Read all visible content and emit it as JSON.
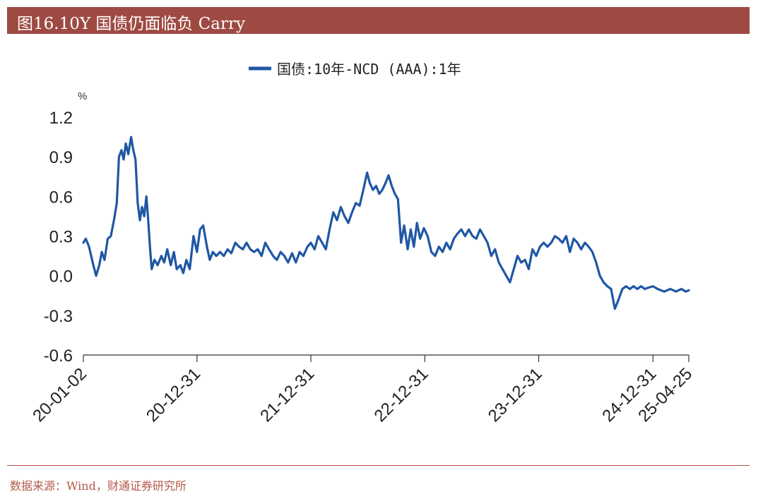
{
  "title": "图16.10Y 国债仍面临负 Carry",
  "source": "数据来源：Wind，财通证券研究所",
  "colors": {
    "title_bg": "#9e4a43",
    "series": "#1f57a4",
    "source_text": "#b35a4a",
    "axis": "#333333"
  },
  "chart_data": {
    "type": "line",
    "title": "",
    "xlabel": "",
    "ylabel": "%",
    "ylim": [
      -0.6,
      1.2
    ],
    "yticks": [
      "1.2",
      "0.9",
      "0.6",
      "0.3",
      "0.0",
      "-0.3",
      "-0.6"
    ],
    "ytick_values": [
      1.2,
      0.9,
      0.6,
      0.3,
      0.0,
      -0.3,
      -0.6
    ],
    "xticks": [
      "20-01-02",
      "20-12-31",
      "21-12-31",
      "22-12-31",
      "23-12-31",
      "24-12-31",
      "25-04-25"
    ],
    "xtick_dates": [
      "2020-01-02",
      "2020-12-31",
      "2021-12-31",
      "2022-12-31",
      "2023-12-31",
      "2024-12-31",
      "2025-04-25"
    ],
    "legend_position": "top-center",
    "grid": false,
    "series": [
      {
        "name": "国债:10年-NCD (AAA):1年",
        "color": "#1f57a4",
        "points": [
          [
            "2020-01-02",
            0.25
          ],
          [
            "2020-01-10",
            0.28
          ],
          [
            "2020-01-20",
            0.22
          ],
          [
            "2020-02-03",
            0.08
          ],
          [
            "2020-02-12",
            0.0
          ],
          [
            "2020-02-22",
            0.08
          ],
          [
            "2020-03-01",
            0.18
          ],
          [
            "2020-03-10",
            0.12
          ],
          [
            "2020-03-20",
            0.28
          ],
          [
            "2020-03-30",
            0.3
          ],
          [
            "2020-04-09",
            0.42
          ],
          [
            "2020-04-18",
            0.55
          ],
          [
            "2020-04-25",
            0.9
          ],
          [
            "2020-05-03",
            0.95
          ],
          [
            "2020-05-10",
            0.88
          ],
          [
            "2020-05-17",
            1.0
          ],
          [
            "2020-05-25",
            0.92
          ],
          [
            "2020-06-03",
            1.05
          ],
          [
            "2020-06-10",
            0.95
          ],
          [
            "2020-06-17",
            0.88
          ],
          [
            "2020-06-24",
            0.55
          ],
          [
            "2020-07-01",
            0.42
          ],
          [
            "2020-07-08",
            0.52
          ],
          [
            "2020-07-15",
            0.45
          ],
          [
            "2020-07-22",
            0.6
          ],
          [
            "2020-07-27",
            0.45
          ],
          [
            "2020-08-03",
            0.2
          ],
          [
            "2020-08-08",
            0.05
          ],
          [
            "2020-08-17",
            0.12
          ],
          [
            "2020-08-27",
            0.08
          ],
          [
            "2020-09-08",
            0.15
          ],
          [
            "2020-09-17",
            0.1
          ],
          [
            "2020-09-27",
            0.2
          ],
          [
            "2020-10-08",
            0.08
          ],
          [
            "2020-10-18",
            0.18
          ],
          [
            "2020-10-27",
            0.05
          ],
          [
            "2020-11-08",
            0.08
          ],
          [
            "2020-11-17",
            0.02
          ],
          [
            "2020-11-27",
            0.12
          ],
          [
            "2020-12-08",
            0.05
          ],
          [
            "2020-12-20",
            0.3
          ],
          [
            "2020-12-31",
            0.18
          ],
          [
            "2021-01-10",
            0.35
          ],
          [
            "2021-01-20",
            0.38
          ],
          [
            "2021-02-01",
            0.22
          ],
          [
            "2021-02-10",
            0.12
          ],
          [
            "2021-02-20",
            0.18
          ],
          [
            "2021-03-03",
            0.15
          ],
          [
            "2021-03-15",
            0.18
          ],
          [
            "2021-03-27",
            0.15
          ],
          [
            "2021-04-08",
            0.2
          ],
          [
            "2021-04-20",
            0.17
          ],
          [
            "2021-05-03",
            0.25
          ],
          [
            "2021-05-15",
            0.22
          ],
          [
            "2021-05-27",
            0.2
          ],
          [
            "2021-06-08",
            0.25
          ],
          [
            "2021-06-20",
            0.2
          ],
          [
            "2021-07-02",
            0.18
          ],
          [
            "2021-07-14",
            0.2
          ],
          [
            "2021-07-26",
            0.15
          ],
          [
            "2021-08-07",
            0.25
          ],
          [
            "2021-08-19",
            0.2
          ],
          [
            "2021-09-01",
            0.15
          ],
          [
            "2021-09-13",
            0.12
          ],
          [
            "2021-09-25",
            0.18
          ],
          [
            "2021-10-07",
            0.15
          ],
          [
            "2021-10-19",
            0.1
          ],
          [
            "2021-11-01",
            0.17
          ],
          [
            "2021-11-13",
            0.1
          ],
          [
            "2021-11-25",
            0.18
          ],
          [
            "2021-12-07",
            0.15
          ],
          [
            "2021-12-20",
            0.22
          ],
          [
            "2021-12-31",
            0.25
          ],
          [
            "2022-01-12",
            0.2
          ],
          [
            "2022-01-24",
            0.3
          ],
          [
            "2022-02-05",
            0.25
          ],
          [
            "2022-02-17",
            0.2
          ],
          [
            "2022-03-01",
            0.35
          ],
          [
            "2022-03-13",
            0.48
          ],
          [
            "2022-03-25",
            0.42
          ],
          [
            "2022-04-06",
            0.52
          ],
          [
            "2022-04-18",
            0.45
          ],
          [
            "2022-04-30",
            0.4
          ],
          [
            "2022-05-12",
            0.48
          ],
          [
            "2022-05-24",
            0.55
          ],
          [
            "2022-06-05",
            0.53
          ],
          [
            "2022-06-17",
            0.65
          ],
          [
            "2022-06-29",
            0.78
          ],
          [
            "2022-07-08",
            0.7
          ],
          [
            "2022-07-18",
            0.65
          ],
          [
            "2022-07-28",
            0.68
          ],
          [
            "2022-08-07",
            0.62
          ],
          [
            "2022-08-17",
            0.65
          ],
          [
            "2022-08-27",
            0.7
          ],
          [
            "2022-09-06",
            0.76
          ],
          [
            "2022-09-16",
            0.68
          ],
          [
            "2022-09-26",
            0.62
          ],
          [
            "2022-10-06",
            0.58
          ],
          [
            "2022-10-16",
            0.25
          ],
          [
            "2022-10-26",
            0.38
          ],
          [
            "2022-11-06",
            0.2
          ],
          [
            "2022-11-16",
            0.35
          ],
          [
            "2022-11-26",
            0.22
          ],
          [
            "2022-12-06",
            0.4
          ],
          [
            "2022-12-16",
            0.28
          ],
          [
            "2022-12-28",
            0.36
          ],
          [
            "2023-01-09",
            0.3
          ],
          [
            "2023-01-21",
            0.18
          ],
          [
            "2023-02-02",
            0.15
          ],
          [
            "2023-02-14",
            0.22
          ],
          [
            "2023-02-26",
            0.18
          ],
          [
            "2023-03-10",
            0.25
          ],
          [
            "2023-03-22",
            0.2
          ],
          [
            "2023-04-03",
            0.28
          ],
          [
            "2023-04-15",
            0.32
          ],
          [
            "2023-04-27",
            0.35
          ],
          [
            "2023-05-09",
            0.3
          ],
          [
            "2023-05-21",
            0.35
          ],
          [
            "2023-06-02",
            0.3
          ],
          [
            "2023-06-14",
            0.28
          ],
          [
            "2023-06-26",
            0.35
          ],
          [
            "2023-07-08",
            0.3
          ],
          [
            "2023-07-20",
            0.25
          ],
          [
            "2023-08-01",
            0.15
          ],
          [
            "2023-08-13",
            0.2
          ],
          [
            "2023-08-25",
            0.1
          ],
          [
            "2023-09-06",
            0.05
          ],
          [
            "2023-09-18",
            0.0
          ],
          [
            "2023-09-30",
            -0.05
          ],
          [
            "2023-10-12",
            0.05
          ],
          [
            "2023-10-24",
            0.15
          ],
          [
            "2023-11-05",
            0.1
          ],
          [
            "2023-11-17",
            0.12
          ],
          [
            "2023-11-29",
            0.05
          ],
          [
            "2023-12-11",
            0.2
          ],
          [
            "2023-12-23",
            0.15
          ],
          [
            "2024-01-04",
            0.22
          ],
          [
            "2024-01-16",
            0.25
          ],
          [
            "2024-01-28",
            0.22
          ],
          [
            "2024-02-09",
            0.25
          ],
          [
            "2024-02-21",
            0.3
          ],
          [
            "2024-03-04",
            0.28
          ],
          [
            "2024-03-16",
            0.25
          ],
          [
            "2024-03-28",
            0.3
          ],
          [
            "2024-04-09",
            0.18
          ],
          [
            "2024-04-21",
            0.28
          ],
          [
            "2024-05-03",
            0.25
          ],
          [
            "2024-05-15",
            0.2
          ],
          [
            "2024-05-27",
            0.25
          ],
          [
            "2024-06-08",
            0.22
          ],
          [
            "2024-06-20",
            0.18
          ],
          [
            "2024-07-02",
            0.1
          ],
          [
            "2024-07-14",
            0.0
          ],
          [
            "2024-07-26",
            -0.05
          ],
          [
            "2024-08-07",
            -0.08
          ],
          [
            "2024-08-19",
            -0.1
          ],
          [
            "2024-08-31",
            -0.25
          ],
          [
            "2024-09-12",
            -0.18
          ],
          [
            "2024-09-24",
            -0.1
          ],
          [
            "2024-10-06",
            -0.08
          ],
          [
            "2024-10-18",
            -0.1
          ],
          [
            "2024-10-30",
            -0.08
          ],
          [
            "2024-11-11",
            -0.1
          ],
          [
            "2024-11-23",
            -0.08
          ],
          [
            "2024-12-05",
            -0.1
          ],
          [
            "2024-12-17",
            -0.09
          ],
          [
            "2024-12-31",
            -0.08
          ],
          [
            "2025-01-15",
            -0.1
          ],
          [
            "2025-02-05",
            -0.12
          ],
          [
            "2025-02-25",
            -0.1
          ],
          [
            "2025-03-15",
            -0.12
          ],
          [
            "2025-04-01",
            -0.1
          ],
          [
            "2025-04-15",
            -0.12
          ],
          [
            "2025-04-25",
            -0.11
          ]
        ]
      }
    ]
  }
}
